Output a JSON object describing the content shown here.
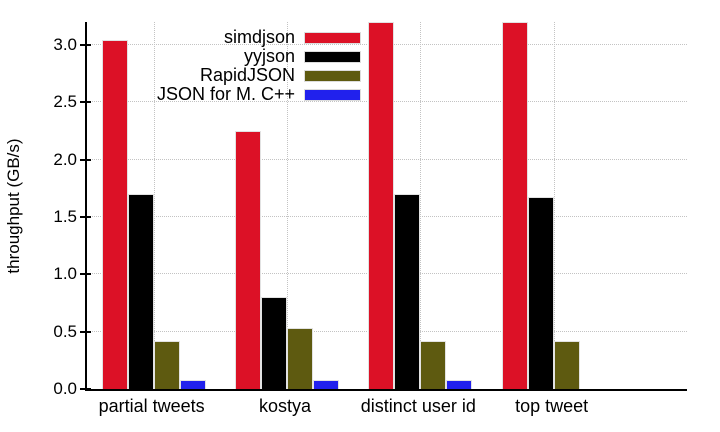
{
  "chart_data": {
    "type": "bar",
    "title": "",
    "xlabel": "",
    "ylabel": "throughput (GB/s)",
    "categories": [
      "partial tweets",
      "kostya",
      "distinct user id",
      "top tweet"
    ],
    "series": [
      {
        "name": "simdjson",
        "color": "#dc1126",
        "values": [
          3.04,
          2.25,
          3.2,
          3.2
        ]
      },
      {
        "name": "yyjson",
        "color": "#000000",
        "values": [
          1.7,
          0.8,
          1.7,
          1.67
        ]
      },
      {
        "name": "RapidJSON",
        "color": "#5e5a10",
        "values": [
          0.42,
          0.53,
          0.42,
          0.42
        ]
      },
      {
        "name": "JSON for M. C++",
        "color": "#2121ed",
        "values": [
          0.08,
          0.08,
          0.08,
          null
        ]
      }
    ],
    "ylim": [
      0,
      3.2
    ],
    "yticks": [
      0.0,
      0.5,
      1.0,
      1.5,
      2.0,
      2.5,
      3.0
    ],
    "ytick_format_decimals": 1,
    "grid": true,
    "legend_position": "top-center"
  }
}
